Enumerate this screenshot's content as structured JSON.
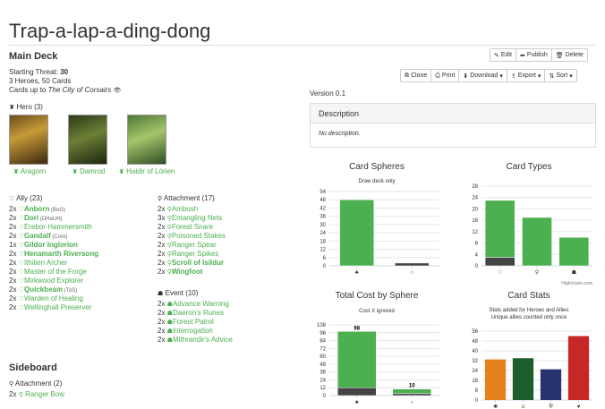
{
  "deck": {
    "title": "Trap-a-lap-a-ding-dong",
    "main_deck_label": "Main Deck",
    "starting_threat_label": "Starting Threat:",
    "starting_threat_value": "30",
    "summary": "3 Heroes, 50 Cards",
    "cards_up_to_label": "Cards up to",
    "cards_up_to_value": "The City of Corsairs",
    "version": "Version 0.1"
  },
  "toolbar": {
    "edit": "Edit",
    "publish": "Publish",
    "delete": "Delete",
    "clone": "Clone",
    "print": "Print",
    "download": "Download",
    "export": "Export",
    "sort": "Sort"
  },
  "hero_section": {
    "label": "Hero (3)",
    "heroes": [
      {
        "name": "Aragorn"
      },
      {
        "name": "Damrod"
      },
      {
        "name": "Haldir of Lórien"
      }
    ]
  },
  "ally_section": {
    "label": "Ally (23)",
    "cards": [
      {
        "qty": "2x",
        "name": "Anborn",
        "set": "(BoG)",
        "bold": true
      },
      {
        "qty": "2x",
        "name": "Dori",
        "set": "(OHaUH)",
        "bold": true
      },
      {
        "qty": "2x",
        "name": "Erebor Hammersmith",
        "set": "",
        "bold": false
      },
      {
        "qty": "2x",
        "name": "Gandalf",
        "set": "(Core)",
        "bold": true
      },
      {
        "qty": "1x",
        "name": "Gildor Inglorion",
        "set": "",
        "bold": true
      },
      {
        "qty": "2x",
        "name": "Henamarth Riversong",
        "set": "",
        "bold": true
      },
      {
        "qty": "2x",
        "name": "Ithilien Archer",
        "set": "",
        "bold": false
      },
      {
        "qty": "2x",
        "name": "Master of the Forge",
        "set": "",
        "bold": false
      },
      {
        "qty": "2x",
        "name": "Mirkwood Explorer",
        "set": "",
        "bold": false
      },
      {
        "qty": "2x",
        "name": "Quickbeam",
        "set": "(ToS)",
        "bold": true
      },
      {
        "qty": "2x",
        "name": "Warden of Healing",
        "set": "",
        "bold": false
      },
      {
        "qty": "2x",
        "name": "Wellinghall Preserver",
        "set": "",
        "bold": false
      }
    ]
  },
  "attachment_section": {
    "label": "Attachment (17)",
    "cards": [
      {
        "qty": "2x",
        "name": "Ambush",
        "bold": false
      },
      {
        "qty": "3x",
        "name": "Entangling Nets",
        "bold": false
      },
      {
        "qty": "2x",
        "name": "Forest Snare",
        "bold": false
      },
      {
        "qty": "2x",
        "name": "Poisoned Stakes",
        "bold": false
      },
      {
        "qty": "2x",
        "name": "Ranger Spear",
        "bold": false
      },
      {
        "qty": "2x",
        "name": "Ranger Spikes",
        "bold": false
      },
      {
        "qty": "2x",
        "name": "Scroll of Isildur",
        "bold": true
      },
      {
        "qty": "2x",
        "name": "Wingfoot",
        "bold": true
      }
    ]
  },
  "event_section": {
    "label": "Event (10)",
    "cards": [
      {
        "qty": "2x",
        "name": "Advance Warning"
      },
      {
        "qty": "2x",
        "name": "Daeron's Runes"
      },
      {
        "qty": "2x",
        "name": "Forest Patrol"
      },
      {
        "qty": "2x",
        "name": "Interrogation"
      },
      {
        "qty": "2x",
        "name": "Mithrandir's Advice"
      }
    ]
  },
  "sideboard": {
    "label": "Sideboard",
    "attachment_label": "Attachment (2)",
    "cards": [
      {
        "qty": "2x",
        "name": "Ranger Bow"
      }
    ]
  },
  "description": {
    "header": "Description",
    "body": "No description."
  },
  "colors": {
    "green": "#4caf50",
    "dark": "#434343",
    "lore": "#4caf50",
    "leadership": "#e6821e",
    "tactics": "#1b5e2a",
    "spirit": "#27336e",
    "fellowship": "#c62828"
  },
  "credits": "Highcharts.com",
  "chart_data": [
    {
      "type": "bar",
      "title": "Card Spheres",
      "subtitle": "Draw deck only",
      "categories": [
        "lore",
        "neutral"
      ],
      "category_icons": [
        "lore-icon",
        "neutral-icon"
      ],
      "series": [
        {
          "values": [
            0,
            2
          ],
          "color": "#434343"
        },
        {
          "values": [
            48,
            0
          ],
          "color": "#4caf50"
        }
      ],
      "y_ticks": [
        0,
        6,
        12,
        18,
        24,
        30,
        36,
        42,
        48,
        54
      ],
      "ylim": [
        0,
        54
      ]
    },
    {
      "type": "bar",
      "title": "Card Types",
      "categories": [
        "ally",
        "attachment",
        "event"
      ],
      "category_icons": [
        "ally-icon",
        "attachment-icon",
        "event-icon"
      ],
      "series": [
        {
          "values": [
            3,
            0,
            0
          ],
          "color": "#434343"
        },
        {
          "values": [
            20,
            17,
            10
          ],
          "color": "#4caf50"
        }
      ],
      "y_ticks": [
        0,
        4,
        8,
        12,
        16,
        20,
        24,
        28
      ],
      "ylim": [
        0,
        28
      ]
    },
    {
      "type": "bar",
      "title": "Total Cost by Sphere",
      "subtitle": "Cost X ignored",
      "categories": [
        "lore",
        "neutral"
      ],
      "category_icons": [
        "lore-icon",
        "neutral-icon"
      ],
      "totals": [
        "98",
        "10"
      ],
      "series": [
        {
          "values": [
            12,
            3
          ],
          "color": "#434343"
        },
        {
          "values": [
            86,
            7
          ],
          "color": "#4caf50"
        }
      ],
      "y_ticks": [
        0,
        12,
        24,
        36,
        48,
        60,
        72,
        84,
        96,
        108
      ],
      "ylim": [
        0,
        108
      ]
    },
    {
      "type": "bar",
      "title": "Card Stats",
      "subtitle": "Stats added for Heroes and Allies",
      "subtitle2": "Unique allies counted only once",
      "categories": [
        "willpower",
        "attack",
        "defense",
        "hit points"
      ],
      "category_icons": [
        "willpower-icon",
        "attack-icon",
        "defense-icon",
        "hitpoints-icon"
      ],
      "values": [
        33,
        34,
        25,
        52
      ],
      "colors": [
        "#e6821e",
        "#1b5e2a",
        "#27336e",
        "#c62828"
      ],
      "y_ticks": [
        0,
        8,
        16,
        24,
        32,
        40,
        48,
        56
      ],
      "ylim": [
        0,
        56
      ]
    }
  ]
}
